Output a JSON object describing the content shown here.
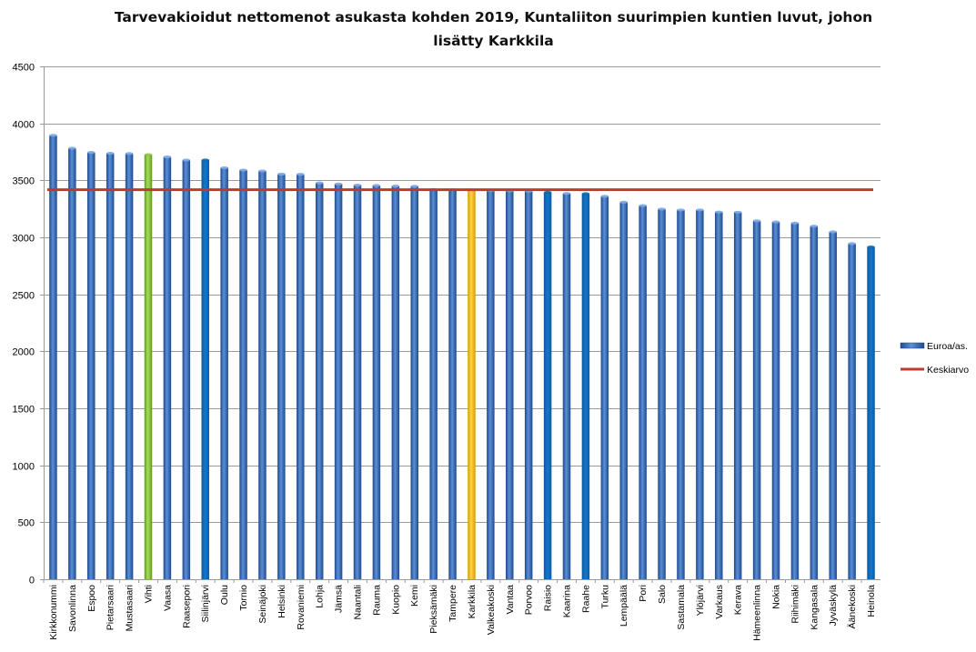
{
  "chart_data": {
    "type": "bar",
    "title_line1": "Tarvevakioidut nettomenot asukasta kohden 2019, Kuntaliiton suurimpien kuntien luvut, johon",
    "title_line2": "lisätty Karkkila",
    "xlabel": "",
    "ylabel": "",
    "ylim": [
      0,
      4500
    ],
    "yticks": [
      "0",
      "500",
      "1000",
      "1500",
      "2000",
      "2500",
      "3000",
      "3500",
      "4000",
      "4500"
    ],
    "grid": true,
    "legend_position": "right",
    "categories": [
      "Kirkkonummi",
      "Savonlinna",
      "Espoo",
      "Pietarsaari",
      "Mustasaari",
      "Vihti",
      "Vaasa",
      "Raasepori",
      "Siilinjärvi",
      "Oulu",
      "Tornio",
      "Seinäjoki",
      "Helsinki",
      "Rovaniemi",
      "Lohja",
      "Jämsä",
      "Naantali",
      "Rauma",
      "Kuopio",
      "Kemi",
      "Pieksämäki",
      "Tampere",
      "Karkkila",
      "Valkeakoski",
      "Vantaa",
      "Porvoo",
      "Raisio",
      "Kaarina",
      "Raahe",
      "Turku",
      "Lempäälä",
      "Pori",
      "Salo",
      "Sastamala",
      "Ylöjärvi",
      "Varkaus",
      "Kerava",
      "Hämeenlinna",
      "Nokia",
      "Riihimäki",
      "Kangasala",
      "Jyväskylä",
      "Äänekoski",
      "Heinola"
    ],
    "series": [
      {
        "name": "Euroa/as.",
        "type": "bar",
        "color": "#3b6fbf",
        "values": [
          3895,
          3782,
          3745,
          3737,
          3735,
          3725,
          3705,
          3678,
          3678,
          3610,
          3590,
          3582,
          3555,
          3553,
          3478,
          3468,
          3458,
          3455,
          3450,
          3448,
          3420,
          3418,
          3415,
          3410,
          3408,
          3405,
          3395,
          3385,
          3383,
          3360,
          3308,
          3278,
          3248,
          3240,
          3240,
          3222,
          3220,
          3145,
          3135,
          3125,
          3098,
          3048,
          2945,
          2915
        ],
        "highlight_colors": {
          "Vihti": "#8cc63f",
          "Karkkila": "#f5b800",
          "Siilinjärvi": "#0f67b3",
          "Raisio": "#0f67b3",
          "Raahe": "#0f67b3",
          "Heinola": "#0f67b3"
        }
      },
      {
        "name": "Keskiarvo",
        "type": "line",
        "color": "#c0392b",
        "value": 3418
      }
    ]
  }
}
